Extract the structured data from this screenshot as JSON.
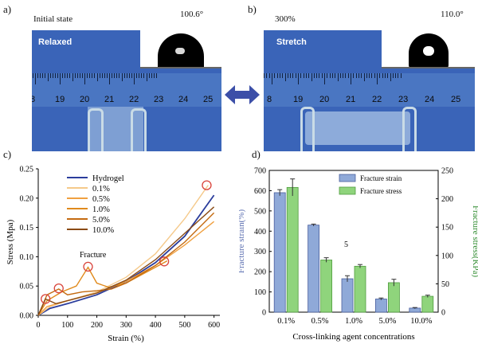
{
  "panels": {
    "a": "a)",
    "b": "b)",
    "c": "c)",
    "d": "d)"
  },
  "photo_a": {
    "state": "Initial state",
    "tag": "Relaxed",
    "angle": "100.6°"
  },
  "photo_b": {
    "state": "300%",
    "tag": "Stretch",
    "angle": "110.0°"
  },
  "ruler": {
    "a_numbers": [
      "8",
      "19",
      "20",
      "21",
      "22",
      "23",
      "24",
      "25"
    ],
    "b_numbers": [
      "8",
      "19",
      "20",
      "21",
      "22",
      "23",
      "24",
      "25"
    ]
  },
  "colors": {
    "photo_bg": "#3a64b8",
    "arrow": "#3c4fa8",
    "bar_strain": "#8fa9d8",
    "bar_stress": "#8fd47c",
    "stress_axis": "#2e8b2e",
    "strain_axis": "#5a6eb0"
  },
  "chart_data": [
    {
      "type": "line",
      "xlabel": "Strain (%)",
      "ylabel": "Stress (Mpa)",
      "xlim": [
        0,
        620
      ],
      "ylim": [
        0,
        0.25
      ],
      "xticks": [
        "0",
        "100",
        "200",
        "300",
        "400",
        "500",
        "600"
      ],
      "yticks": [
        "0.00",
        "0.05",
        "0.10",
        "0.15",
        "0.20",
        "0.25"
      ],
      "annotation": "Fracture",
      "series": [
        {
          "name": "Hydrogel",
          "color": "#2b3d9c",
          "x": [
            0,
            40,
            100,
            200,
            300,
            400,
            500,
            600
          ],
          "y": [
            0,
            0.012,
            0.02,
            0.035,
            0.058,
            0.09,
            0.135,
            0.205
          ]
        },
        {
          "name": "0.1%",
          "color": "#f5c98a",
          "x": [
            0,
            40,
            100,
            200,
            300,
            400,
            500,
            580
          ],
          "y": [
            0,
            0.015,
            0.025,
            0.04,
            0.065,
            0.105,
            0.165,
            0.222
          ]
        },
        {
          "name": "0.5%",
          "color": "#f0a040",
          "x": [
            0,
            30,
            100,
            200,
            300,
            400,
            500,
            600
          ],
          "y": [
            0,
            0.015,
            0.025,
            0.038,
            0.058,
            0.085,
            0.12,
            0.16
          ]
        },
        {
          "name": "1.0%",
          "color": "#e08a1c",
          "x": [
            0,
            30,
            80,
            130,
            170,
            200,
            240,
            300,
            400,
            440
          ],
          "y": [
            0,
            0.025,
            0.04,
            0.05,
            0.082,
            0.055,
            0.048,
            0.055,
            0.082,
            0.093
          ]
        },
        {
          "name": "5.0%",
          "color": "#c46a10",
          "x": [
            0,
            30,
            70,
            100,
            150,
            200,
            250,
            300,
            400,
            500,
            600
          ],
          "y": [
            0,
            0.035,
            0.045,
            0.035,
            0.04,
            0.042,
            0.045,
            0.055,
            0.085,
            0.125,
            0.175
          ]
        },
        {
          "name": "10.0%",
          "color": "#8a4a14",
          "x": [
            0,
            25,
            60,
            100,
            200,
            300,
            400,
            500,
            600
          ],
          "y": [
            0,
            0.028,
            0.02,
            0.025,
            0.038,
            0.06,
            0.095,
            0.14,
            0.185
          ]
        }
      ],
      "fracture_points": [
        {
          "x": 25,
          "y": 0.028
        },
        {
          "x": 70,
          "y": 0.046
        },
        {
          "x": 170,
          "y": 0.083
        },
        {
          "x": 430,
          "y": 0.092
        },
        {
          "x": 575,
          "y": 0.222
        }
      ]
    },
    {
      "type": "bar",
      "xlabel": "Cross-linking agent concentrations",
      "ylabel": "Fracture strain(%)",
      "ylabel_right": "Fracture stress(KPa)",
      "annotation": "5",
      "categories": [
        "0.1%",
        "0.5%",
        "1.0%",
        "5.0%",
        "10.0%"
      ],
      "ylim": [
        0,
        700
      ],
      "ylim_right": [
        0,
        250
      ],
      "yticks_left": [
        "0",
        "100",
        "200",
        "300",
        "400",
        "500",
        "600",
        "700"
      ],
      "yticks_right": [
        "0",
        "50",
        "100",
        "150",
        "200",
        "250"
      ],
      "series": [
        {
          "name": "Fracture strain",
          "axis": "left",
          "values": [
            590,
            430,
            165,
            65,
            20
          ],
          "errors": [
            15,
            5,
            15,
            5,
            3
          ]
        },
        {
          "name": "Fracture stress",
          "axis": "right",
          "values": [
            220,
            92,
            81,
            52,
            28
          ],
          "errors": [
            15,
            4,
            3,
            6,
            2
          ]
        }
      ]
    }
  ]
}
